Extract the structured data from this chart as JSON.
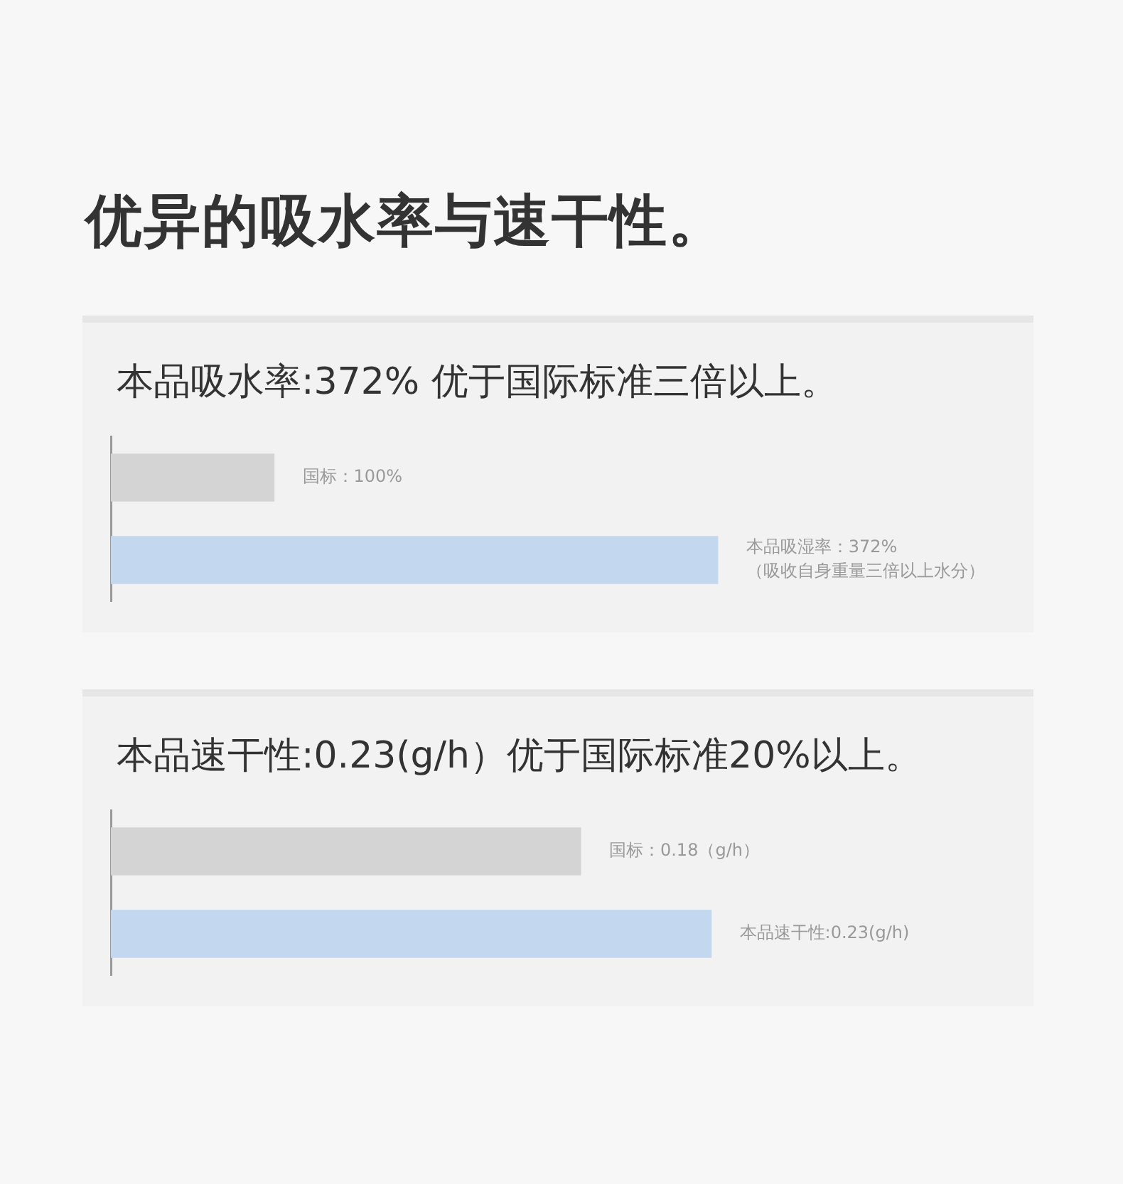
{
  "chart_data": [
    {
      "type": "bar",
      "orientation": "horizontal",
      "title": "优异的吸水率与速干性。",
      "subtitle": "本品吸水率:372%  优于国际标准三倍以上。",
      "categories": [
        null,
        null
      ],
      "values": [
        100,
        372
      ],
      "colors": [
        "#d4d4d4",
        "#c3d7ee"
      ],
      "value_labels": [
        "国标：100%",
        "本品吸湿率：372%\n（吸收自身重量三倍以上水分）"
      ],
      "tick_labels": false
    },
    {
      "type": "bar",
      "orientation": "horizontal",
      "subtitle": "本品速干性:0.23(g/h）优于国际标准20%以上。",
      "categories": [
        null,
        null
      ],
      "values": [
        0.18,
        0.23
      ],
      "colors": [
        "#d4d4d4",
        "#c3d7ee"
      ],
      "value_labels": [
        "国标：0.18（g/h）",
        "本品速干性:0.23(g/h)"
      ],
      "tick_labels": false
    }
  ]
}
